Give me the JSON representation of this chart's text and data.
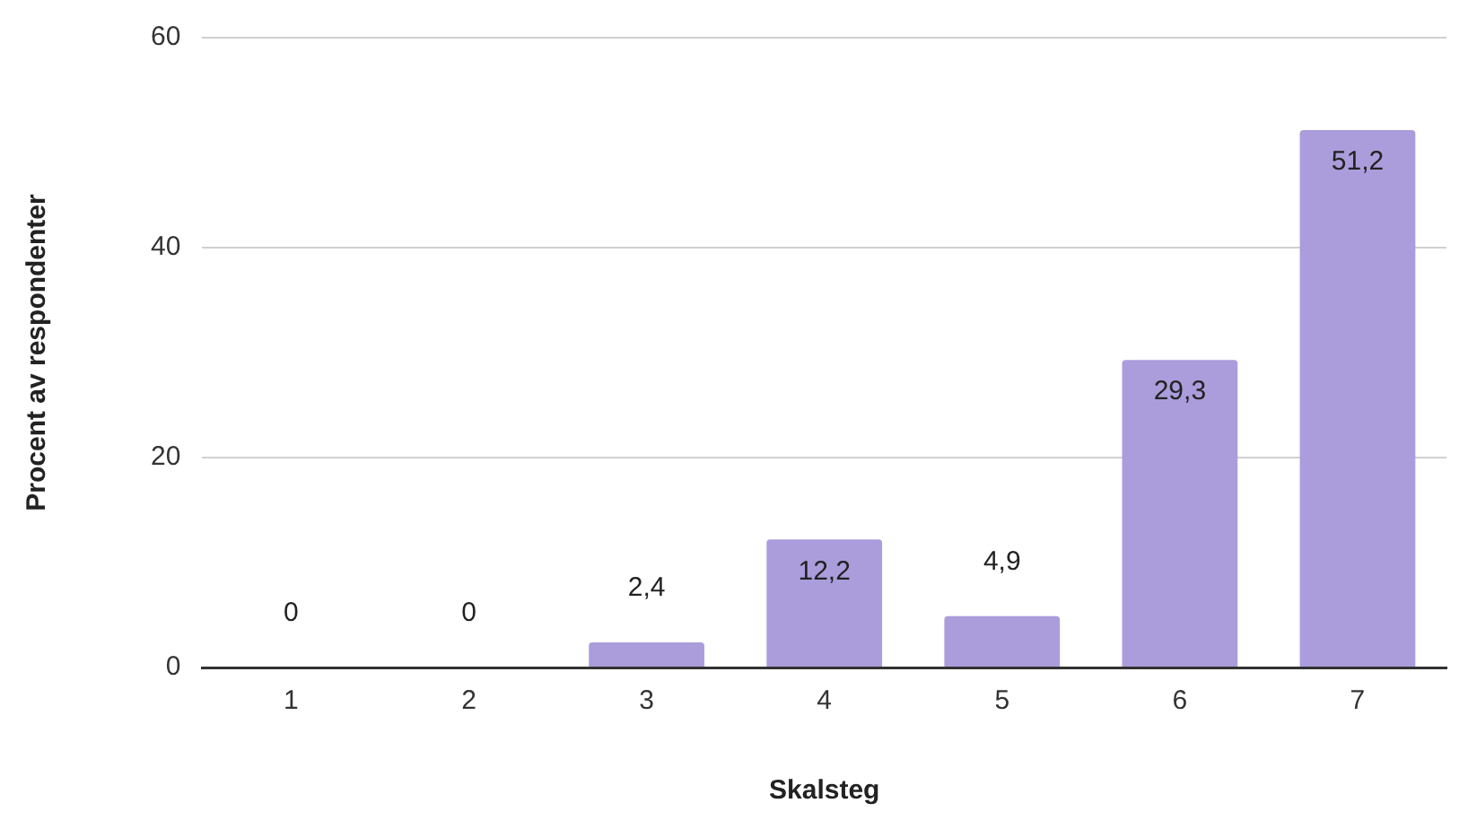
{
  "chart_data": {
    "type": "bar",
    "xlabel": "Skalsteg",
    "ylabel": "Procent av respondenter",
    "categories": [
      "1",
      "2",
      "3",
      "4",
      "5",
      "6",
      "7"
    ],
    "values": [
      0,
      0,
      2.4,
      12.2,
      4.9,
      29.3,
      51.2
    ],
    "value_labels": [
      "0",
      "0",
      "2,4",
      "12,2",
      "4,9",
      "29,3",
      "51,2"
    ],
    "color": "#ab9ddc",
    "ylim": [
      0,
      60
    ],
    "yticks": [
      0,
      20,
      40,
      60
    ],
    "grid": "y",
    "legend": false
  }
}
